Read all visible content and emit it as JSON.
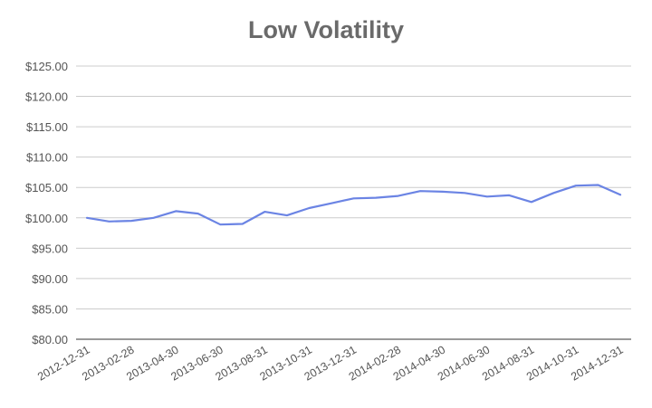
{
  "chart_data": {
    "type": "line",
    "title": "Low Volatility",
    "xlabel": "",
    "ylabel": "",
    "ylim": [
      80,
      125
    ],
    "yticks": [
      "$80.00",
      "$85.00",
      "$90.00",
      "$95.00",
      "$100.00",
      "$105.00",
      "$110.00",
      "$115.00",
      "$120.00",
      "$125.00"
    ],
    "ytick_values": [
      80,
      85,
      90,
      95,
      100,
      105,
      110,
      115,
      120,
      125
    ],
    "x": [
      "2012-12-31",
      "2013-01-31",
      "2013-02-28",
      "2013-03-31",
      "2013-04-30",
      "2013-05-31",
      "2013-06-30",
      "2013-07-31",
      "2013-08-31",
      "2013-09-30",
      "2013-10-31",
      "2013-11-30",
      "2013-12-31",
      "2014-01-31",
      "2014-02-28",
      "2014-03-31",
      "2014-04-30",
      "2014-05-31",
      "2014-06-30",
      "2014-07-31",
      "2014-08-31",
      "2014-09-30",
      "2014-10-31",
      "2014-11-30",
      "2014-12-31"
    ],
    "xticks": [
      "2012-12-31",
      "2013-02-28",
      "2013-04-30",
      "2013-06-30",
      "2013-08-31",
      "2013-10-31",
      "2013-12-31",
      "2014-02-28",
      "2014-04-30",
      "2014-06-30",
      "2014-08-31",
      "2014-10-31",
      "2014-12-31"
    ],
    "series": [
      {
        "values": [
          100.0,
          99.4,
          99.5,
          100.0,
          101.1,
          100.7,
          98.9,
          99.0,
          101.0,
          100.4,
          101.6,
          102.4,
          103.2,
          103.3,
          103.6,
          104.4,
          104.3,
          104.1,
          103.5,
          103.7,
          102.6,
          104.1,
          105.3,
          105.4,
          103.8
        ],
        "color": "#6b84e4"
      }
    ],
    "grid": true,
    "legend": "none"
  }
}
